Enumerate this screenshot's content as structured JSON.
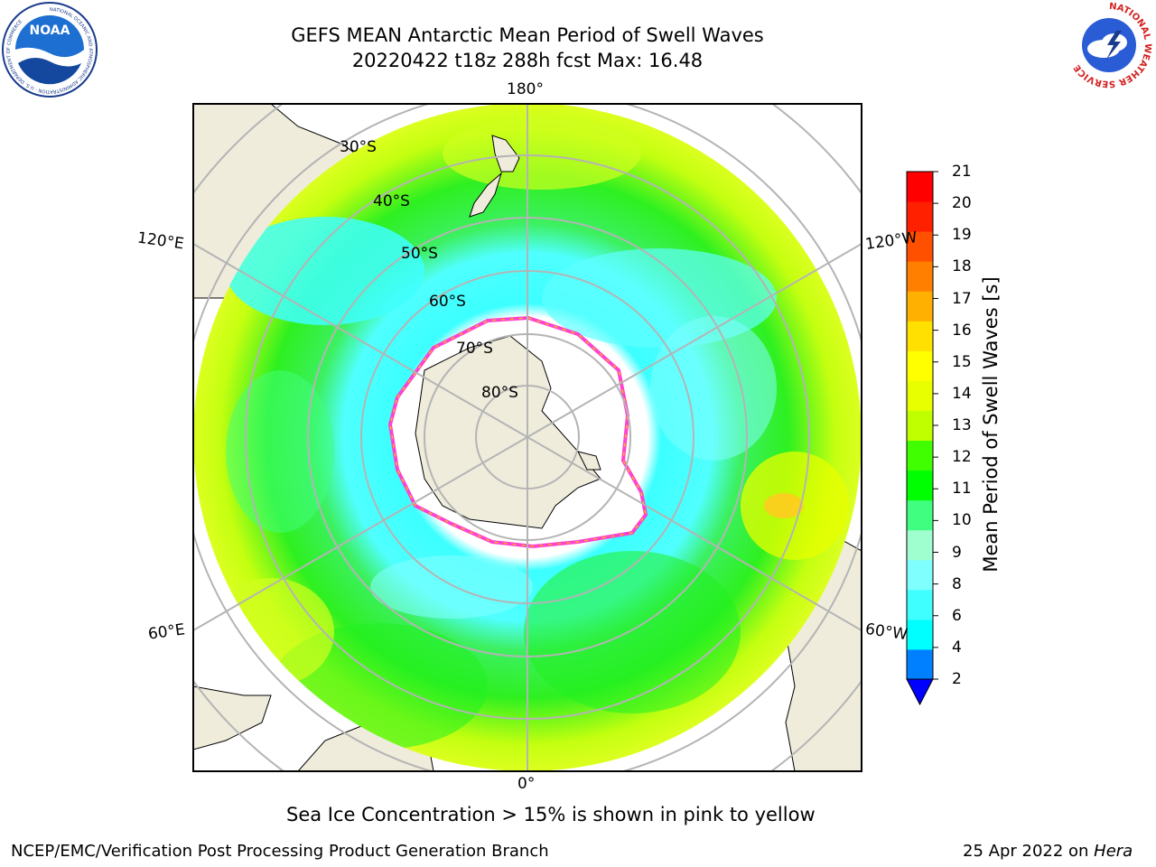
{
  "header": {
    "title": "GEFS MEAN Antarctic Mean Period of Swell Waves",
    "subtitle": "20220422 t18z 288h fcst   Max: 16.48"
  },
  "logos": {
    "noaa_text": "NOAA",
    "noaa_ring": "NATIONAL OCEANIC AND ATMOSPHERIC ADMINISTRATION · U.S. DEPARTMENT OF COMMERCE",
    "nws_ring": "NATIONAL WEATHER SERVICE"
  },
  "map": {
    "lon_labels": {
      "top": "180°",
      "bottom": "0°",
      "upper_left": "120°E",
      "upper_right": "120°W",
      "lower_left": "60°E",
      "lower_right": "60°W"
    },
    "lat_labels": [
      "30°S",
      "40°S",
      "50°S",
      "60°S",
      "70°S",
      "80°S"
    ]
  },
  "colorbar": {
    "label": "Mean Period of Swell Waves [s]",
    "ticks": [
      "21",
      "20",
      "19",
      "18",
      "17",
      "16",
      "15",
      "14",
      "13",
      "12",
      "11",
      "10",
      "9",
      "8",
      "6",
      "4",
      "2"
    ],
    "colors": [
      "#0000ff",
      "#0080ff",
      "#00ffff",
      "#40ffff",
      "#80ffff",
      "#9fffcf",
      "#40ff80",
      "#00ff00",
      "#40ff00",
      "#c0ff00",
      "#e8ff00",
      "#ffff00",
      "#ffe000",
      "#ffb000",
      "#ff8000",
      "#ff5000",
      "#ff2000",
      "#ff0000"
    ]
  },
  "note": "Sea Ice Concentration > 15% is shown in pink to yellow",
  "footer": {
    "left": "NCEP/EMC/Verification Post Processing Product Generation Branch",
    "right_date": "25 Apr 2022 on ",
    "right_machine": "Hera"
  }
}
